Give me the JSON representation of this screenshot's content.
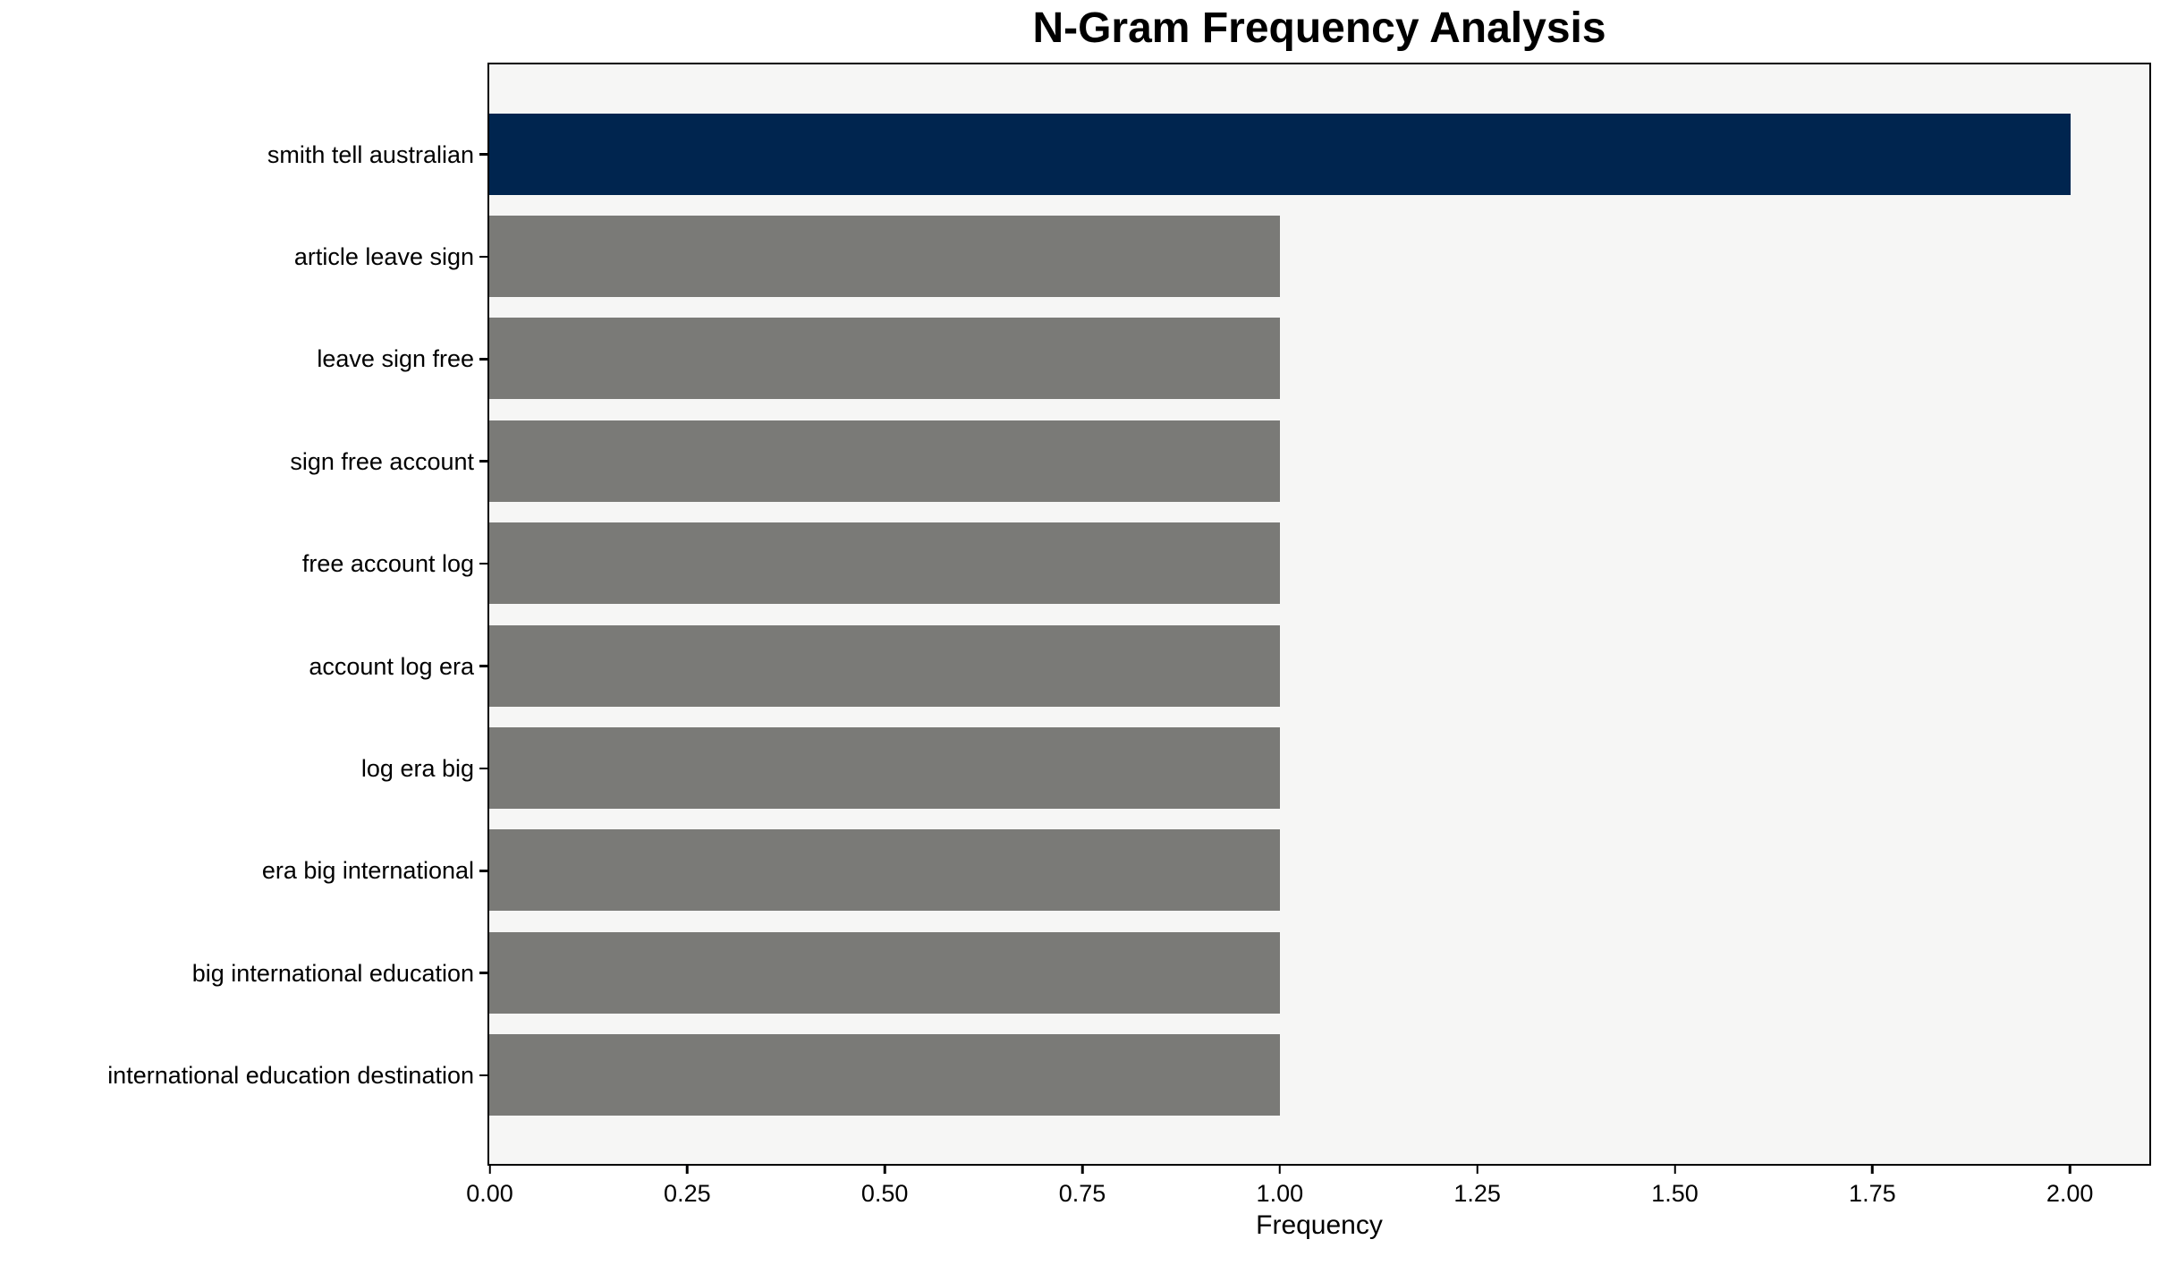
{
  "chart_data": {
    "type": "bar",
    "orientation": "horizontal",
    "title": "N-Gram Frequency Analysis",
    "xlabel": "Frequency",
    "ylabel": "",
    "categories": [
      "smith tell australian",
      "article leave sign",
      "leave sign free",
      "sign free account",
      "free account log",
      "account log era",
      "log era big",
      "era big international",
      "big international education",
      "international education destination"
    ],
    "values": [
      2,
      1,
      1,
      1,
      1,
      1,
      1,
      1,
      1,
      1
    ],
    "bar_colors": [
      "#00254f",
      "#7a7a77",
      "#7a7a77",
      "#7a7a77",
      "#7a7a77",
      "#7a7a77",
      "#7a7a77",
      "#7a7a77",
      "#7a7a77",
      "#7a7a77"
    ],
    "xlim": [
      0,
      2.1
    ],
    "xticks": [
      0.0,
      0.25,
      0.5,
      0.75,
      1.0,
      1.25,
      1.5,
      1.75,
      2.0
    ],
    "xtick_labels": [
      "0.00",
      "0.25",
      "0.50",
      "0.75",
      "1.00",
      "1.25",
      "1.50",
      "1.75",
      "2.00"
    ],
    "grid": false,
    "legend_position": "none"
  },
  "colors": {
    "highlight_bar": "#00254f",
    "default_bar": "#7a7a77",
    "plot_background": "#f6f6f5",
    "figure_background": "#ffffff",
    "axis": "#000000",
    "text": "#000000"
  }
}
